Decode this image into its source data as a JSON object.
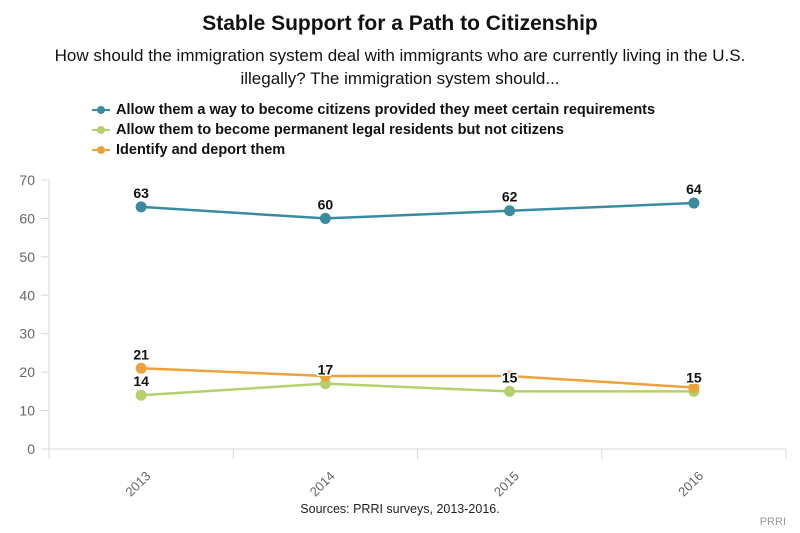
{
  "chart_data": {
    "type": "line",
    "title": "Stable Support for a Path to Citizenship",
    "subtitle": "How should the immigration system deal with immigrants who are currently living in the U.S. illegally? The immigration system should...",
    "categories": [
      "2013",
      "2014",
      "2015",
      "2016"
    ],
    "xlabel": "",
    "ylabel": "",
    "ylim": [
      0,
      70
    ],
    "yticks": [
      0,
      10,
      20,
      30,
      40,
      50,
      60,
      70
    ],
    "grid": false,
    "legend_position": "top-left",
    "series": [
      {
        "name": "Allow them a way to become citizens provided they meet certain requirements",
        "color": "#3a8aa0",
        "values": [
          63,
          60,
          62,
          64
        ],
        "labels": [
          "63",
          "60",
          "62",
          "64"
        ]
      },
      {
        "name": "Allow them to become permanent legal residents but not citizens",
        "color": "#b5d06a",
        "values": [
          14,
          17,
          15,
          15
        ],
        "labels": [
          "14",
          "17",
          "15",
          "15"
        ]
      },
      {
        "name": "Identify and deport them",
        "color": "#eea23c",
        "values": [
          21,
          19,
          19,
          16
        ],
        "labels": [
          "21",
          "",
          "",
          ""
        ]
      }
    ],
    "source": "Sources: PRRI surveys, 2013-2016.",
    "credit": "PRRI"
  }
}
